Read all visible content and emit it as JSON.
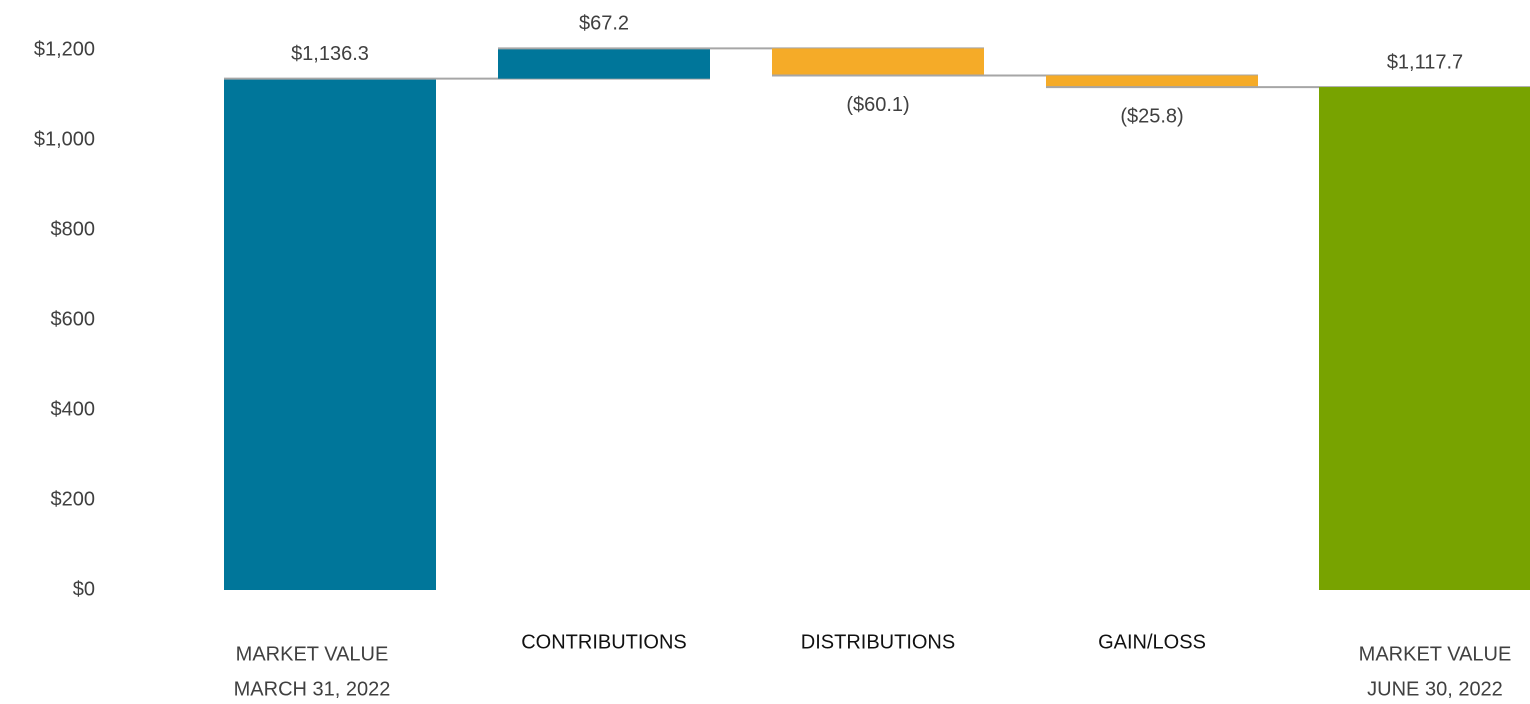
{
  "chart_data": {
    "type": "waterfall",
    "categories": [
      [
        "MARKET VALUE",
        "MARCH 31, 2022"
      ],
      [
        "CONTRIBUTIONS"
      ],
      [
        "DISTRIBUTIONS"
      ],
      [
        "GAIN/LOSS"
      ],
      [
        "MARKET VALUE",
        "JUNE 30, 2022"
      ]
    ],
    "values": [
      1136.3,
      67.2,
      -60.1,
      -25.8,
      1117.7
    ],
    "value_labels": [
      "$1,136.3",
      "$67.2",
      "($60.1)",
      "($25.8)",
      "$1,117.7"
    ],
    "colors": [
      "#00769a",
      "#00769a",
      "#f5ab28",
      "#f5ab28",
      "#78a300"
    ],
    "ylim": [
      0,
      1200
    ],
    "yticks": [
      {
        "value": 0,
        "label": "$0"
      },
      {
        "value": 200,
        "label": "$200"
      },
      {
        "value": 400,
        "label": "$400"
      },
      {
        "value": 600,
        "label": "$600"
      },
      {
        "value": 800,
        "label": "$800"
      },
      {
        "value": 1000,
        "label": "$1,000"
      },
      {
        "value": 1200,
        "label": "$1,200"
      }
    ],
    "grid": false
  }
}
